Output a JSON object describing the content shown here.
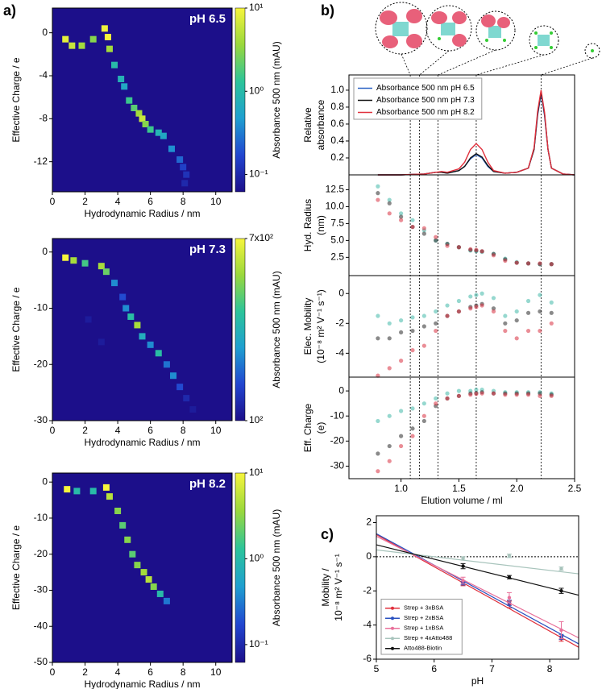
{
  "panel_labels": [
    "a)",
    "b)",
    "c)"
  ],
  "chart_data": [
    {
      "type": "heatmap",
      "xlabel": "Hydrodynamic Radius / nm",
      "ylabel": "Effective Charge / e",
      "annotation": "pH 6.5",
      "xlim": [
        0,
        11
      ],
      "xticks": [
        0,
        2,
        4,
        6,
        8,
        10
      ],
      "ylim": [
        -14.8,
        2.3
      ],
      "yticks": [
        0,
        -4,
        -8,
        -12
      ],
      "colormap": [
        "#1c0f8a",
        "#2246d0",
        "#1f9fd0",
        "#2cc49a",
        "#9ad83c",
        "#f6f53c"
      ],
      "colorbar": {
        "label": "Absorbance 500 nm (mAU)",
        "log": true,
        "lim": [
          0.062,
          10
        ],
        "ticks": [
          {
            "value": 10,
            "label": "10¹"
          },
          {
            "value": 1,
            "label": "10⁰"
          },
          {
            "value": 0.1,
            "label": "10⁻¹"
          }
        ]
      },
      "x": [
        0.8,
        1.2,
        1.8,
        2.5,
        3.2,
        3.4,
        3.5,
        3.8,
        4.2,
        4.4,
        4.7,
        5.0,
        5.3,
        5.5,
        5.7,
        6.0,
        6.5,
        6.8,
        7.3,
        7.8,
        8.0,
        8.2,
        8.1
      ],
      "y": [
        -0.6,
        -1.2,
        -1.2,
        -0.6,
        0.4,
        -0.4,
        -1.5,
        -3.0,
        -4.3,
        -5.0,
        -6.3,
        -7.0,
        -7.5,
        -8.0,
        -8.5,
        -9.0,
        -9.3,
        -9.6,
        -10.8,
        -11.8,
        -12.5,
        -13.2,
        -14.0
      ],
      "values": [
        8,
        6,
        4,
        3,
        9,
        10,
        4,
        1,
        0.8,
        0.6,
        1.5,
        2,
        4,
        6,
        3,
        1.5,
        0.8,
        0.6,
        0.4,
        0.25,
        0.15,
        0.12,
        0.1
      ]
    },
    {
      "type": "heatmap",
      "xlabel": "Hydrodynamic Radius / nm",
      "ylabel": "Effective Charge / e",
      "annotation": "pH 7.3",
      "xlim": [
        0,
        11
      ],
      "xticks": [
        0,
        2,
        4,
        6,
        8,
        10
      ],
      "ylim": [
        -30,
        2.4
      ],
      "yticks": [
        0,
        -10,
        -20,
        -30
      ],
      "colormap": [
        "#1c0f8a",
        "#2246d0",
        "#1f9fd0",
        "#2cc49a",
        "#9ad83c",
        "#f6f53c"
      ],
      "colorbar": {
        "label": "Absorbance 500 nm (mAU)",
        "log": true,
        "lim": [
          100,
          700
        ],
        "ticks": [
          {
            "value": 700,
            "label": "7x10²"
          },
          {
            "value": 100,
            "label": "10²"
          }
        ]
      },
      "x": [
        0.8,
        1.3,
        2.0,
        3.0,
        3.3,
        3.8,
        4.3,
        4.5,
        4.8,
        5.2,
        5.5,
        6.0,
        6.5,
        7.0,
        7.4,
        7.8,
        8.2,
        3.0,
        2.2,
        8.6
      ],
      "y": [
        -1,
        -1.5,
        -2,
        -2.5,
        -3.5,
        -5.5,
        -8,
        -10,
        -11.5,
        -13,
        -15,
        -16.5,
        -18,
        -20,
        -22,
        -24,
        -26,
        -16,
        -12,
        -28
      ],
      "values": [
        700,
        500,
        350,
        500,
        400,
        200,
        150,
        200,
        300,
        500,
        250,
        200,
        300,
        180,
        200,
        150,
        120,
        110,
        110,
        110
      ]
    },
    {
      "type": "heatmap",
      "xlabel": "Hydrodynamic Radius / nm",
      "ylabel": "Effective Charge / e",
      "annotation": "pH 8.2",
      "xlim": [
        0,
        11
      ],
      "xticks": [
        0,
        2,
        4,
        6,
        8,
        10
      ],
      "ylim": [
        -50,
        2.5
      ],
      "yticks": [
        0,
        -10,
        -20,
        -30,
        -40,
        -50
      ],
      "colormap": [
        "#1c0f8a",
        "#2246d0",
        "#1f9fd0",
        "#2cc49a",
        "#9ad83c",
        "#f6f53c"
      ],
      "colorbar": {
        "label": "Absorbance 500 nm (mAU)",
        "log": true,
        "lim": [
          0.062,
          10
        ],
        "ticks": [
          {
            "value": 10,
            "label": "10¹"
          },
          {
            "value": 1,
            "label": "10⁰"
          },
          {
            "value": 0.1,
            "label": "10⁻¹"
          }
        ]
      },
      "x": [
        0.9,
        1.5,
        2.5,
        3.3,
        3.5,
        4.0,
        4.3,
        4.6,
        4.9,
        5.2,
        5.6,
        5.9,
        6.2,
        6.6,
        7.0
      ],
      "y": [
        -2,
        -2.5,
        -2.5,
        -1.5,
        -4,
        -8,
        -12,
        -16,
        -20,
        -23,
        -25,
        -27,
        -29,
        -31,
        -33
      ],
      "values": [
        10,
        1,
        1,
        10,
        5,
        3,
        2,
        3,
        2,
        3,
        4,
        5,
        3,
        1,
        0.3
      ]
    },
    {
      "type": "line",
      "ylabel": [
        "Relative",
        "absorbance"
      ],
      "legend": "upper left",
      "xlim": [
        0.55,
        2.5
      ],
      "ylim": [
        0,
        1.18
      ],
      "yticks": [
        0.2,
        0.4,
        0.6,
        0.8,
        {
          "value": 1,
          "label": "1.0"
        }
      ],
      "vlines": [
        1.08,
        1.16,
        1.32,
        1.65,
        2.21
      ],
      "x": [
        0.8,
        1.0,
        1.2,
        1.3,
        1.35,
        1.4,
        1.5,
        1.55,
        1.6,
        1.65,
        1.7,
        1.75,
        1.8,
        1.9,
        2.0,
        2.1,
        2.15,
        2.18,
        2.21,
        2.24,
        2.27,
        2.3,
        2.4,
        2.5
      ],
      "series": [
        {
          "name": "Absorbance 500 nm pH 6.5",
          "color": "#2a62c4",
          "values": [
            0,
            0,
            0.01,
            0.03,
            0.03,
            0.02,
            0.05,
            0.1,
            0.19,
            0.24,
            0.2,
            0.1,
            0.04,
            0.02,
            0.03,
            0.08,
            0.3,
            0.7,
            0.96,
            0.7,
            0.3,
            0.08,
            0.01,
            0
          ]
        },
        {
          "name": "Absorbance 500 nm pH 7.3",
          "color": "#111111",
          "values": [
            0,
            0,
            0.01,
            0.03,
            0.03,
            0.02,
            0.05,
            0.1,
            0.2,
            0.25,
            0.21,
            0.11,
            0.04,
            0.02,
            0.03,
            0.08,
            0.3,
            0.72,
            0.98,
            0.72,
            0.3,
            0.08,
            0.01,
            0
          ]
        },
        {
          "name": "Absorbance 500 nm pH 8.2",
          "color": "#e0303c",
          "values": [
            0,
            0,
            0.01,
            0.03,
            0.04,
            0.03,
            0.07,
            0.15,
            0.3,
            0.37,
            0.3,
            0.15,
            0.05,
            0.02,
            0.03,
            0.08,
            0.32,
            0.75,
            1.0,
            0.74,
            0.3,
            0.08,
            0.01,
            0
          ]
        }
      ]
    },
    {
      "type": "scatter",
      "ylabel": [
        "Hyd. Radius",
        "(nm)"
      ],
      "xlim": [
        0.55,
        2.5
      ],
      "ylim": [
        -0.2,
        14.7
      ],
      "yticks": [
        2.5,
        {
          "value": 5,
          "label": "5.0"
        },
        7.5,
        {
          "value": 10,
          "label": "10.0"
        },
        12.5
      ],
      "x": [
        0.8,
        0.9,
        1.0,
        1.1,
        1.2,
        1.3,
        1.4,
        1.5,
        1.6,
        1.65,
        1.7,
        1.8,
        1.9,
        2.0,
        2.1,
        2.2,
        2.3
      ],
      "series": [
        {
          "color": "#40b8a8",
          "values": [
            13,
            11,
            9,
            8,
            6.5,
            5,
            4.5,
            4,
            3.5,
            3.4,
            3.3,
            3,
            2.3,
            1.8,
            1.6,
            1.5,
            1.5
          ]
        },
        {
          "color": "#2a2a2a",
          "values": [
            12,
            10.5,
            8.5,
            7,
            6,
            5,
            4.5,
            4,
            3.6,
            3.5,
            3.4,
            3.0,
            2.2,
            1.7,
            1.6,
            1.5,
            1.5
          ]
        },
        {
          "color": "#d83040",
          "values": [
            11,
            9,
            8,
            7,
            6.8,
            5.5,
            4.2,
            4,
            3.7,
            3.6,
            3.4,
            2.8,
            2.0,
            1.7,
            1.6,
            1.6,
            1.5
          ]
        }
      ]
    },
    {
      "type": "scatter",
      "ylabel": [
        "Elec. Mobility",
        "(10⁻⁸ m² V⁻¹ s⁻¹)"
      ],
      "xlim": [
        0.55,
        2.5
      ],
      "ylim": [
        -5.6,
        1.2
      ],
      "yticks": [
        0,
        -2,
        -4
      ],
      "x": [
        0.8,
        0.9,
        1.0,
        1.1,
        1.2,
        1.3,
        1.4,
        1.5,
        1.6,
        1.65,
        1.7,
        1.8,
        1.9,
        2.0,
        2.1,
        2.2,
        2.3
      ],
      "series": [
        {
          "color": "#40b8a8",
          "values": [
            -1.5,
            -2,
            -1.8,
            -1.6,
            -1.5,
            -1.2,
            -0.8,
            -0.5,
            -0.2,
            -0.1,
            0,
            -0.3,
            -1.5,
            -1.2,
            -0.5,
            -0.1,
            -0.6
          ]
        },
        {
          "color": "#2a2a2a",
          "values": [
            -3,
            -3,
            -2.6,
            -2.5,
            -2.2,
            -2,
            -1.5,
            -1.2,
            -0.9,
            -0.8,
            -0.7,
            -1,
            -2,
            -1.8,
            -1.3,
            -1.2,
            -1.3
          ]
        },
        {
          "color": "#d83040",
          "values": [
            -5.5,
            -5,
            -4.5,
            -3.8,
            -3.5,
            -2.5,
            -1.5,
            -1.2,
            -1,
            -0.9,
            -0.8,
            -1.2,
            -2.5,
            -3,
            -2.5,
            -2.5,
            -2
          ]
        }
      ]
    },
    {
      "type": "scatter",
      "ylabel": [
        "Eff. Charge",
        "(e)"
      ],
      "xlabel": "Elution volume / ml",
      "xlim": [
        0.55,
        2.5
      ],
      "xticks": [
        {
          "value": 1,
          "label": "1.0"
        },
        1.5,
        {
          "value": 2,
          "label": "2.0"
        },
        2.5
      ],
      "ylim": [
        -35,
        5.5
      ],
      "yticks": [
        0,
        -10,
        -20,
        -30
      ],
      "x": [
        0.8,
        0.9,
        1.0,
        1.1,
        1.2,
        1.3,
        1.4,
        1.5,
        1.6,
        1.65,
        1.7,
        1.8,
        1.9,
        2.0,
        2.1,
        2.2,
        2.3
      ],
      "series": [
        {
          "color": "#40b8a8",
          "values": [
            -12,
            -10,
            -8,
            -7,
            -5,
            -3,
            -1,
            0,
            0,
            0.5,
            0.5,
            0,
            -0.5,
            -0.5,
            -0.5,
            -0.5,
            -1
          ]
        },
        {
          "color": "#2a2a2a",
          "values": [
            -25,
            -22,
            -18,
            -15,
            -12,
            -6,
            -3,
            -2,
            -1,
            -0.8,
            -0.5,
            -1,
            -1,
            -1,
            -1,
            -1,
            -1.5
          ]
        },
        {
          "color": "#d83040",
          "values": [
            -32,
            -28,
            -22,
            -18,
            -10,
            -5,
            -3,
            -2,
            -1.5,
            -1.2,
            -1,
            -1,
            -1.5,
            -1.5,
            -1.5,
            -2,
            -2
          ]
        }
      ]
    },
    {
      "type": "errorbar",
      "xlabel": "pH",
      "ylabel": [
        "Mobility /",
        "10⁻⁸ m² V⁻¹ s⁻¹"
      ],
      "legend": "lower left",
      "xlim": [
        5,
        8.5
      ],
      "xticks": [
        5,
        6,
        7,
        8
      ],
      "ylim": [
        -6,
        2.4
      ],
      "yticks": [
        2,
        0,
        -2,
        -4,
        -6
      ],
      "hline": 0,
      "x": [
        6.5,
        7.3,
        8.2
      ],
      "fit_x": [
        5,
        8.5
      ],
      "series": [
        {
          "name": "Strep + 3xBSA",
          "color": "#e0303c",
          "values": [
            -1.6,
            -2.8,
            -4.8
          ],
          "errors": [
            0.1,
            0.2,
            0.15
          ],
          "fit": [
            1.3,
            -5.3
          ]
        },
        {
          "name": "Strep + 2xBSA",
          "color": "#2850c0",
          "values": [
            -1.55,
            -2.7,
            -4.7
          ],
          "errors": [
            0.1,
            0.15,
            0.15
          ],
          "fit": [
            1.35,
            -5.1
          ]
        },
        {
          "name": "Strep + 1xBSA",
          "color": "#e8709a",
          "values": [
            -1.4,
            -2.4,
            -4.3
          ],
          "errors": [
            0.2,
            0.3,
            0.5
          ],
          "fit": [
            1.2,
            -4.75
          ]
        },
        {
          "name": "Strep + 4xAtto488",
          "color": "#a8c4bc",
          "values": [
            -0.1,
            0.05,
            -0.7
          ],
          "errors": [
            0.1,
            0.1,
            0.1
          ],
          "fit": [
            0.4,
            -1.0
          ]
        },
        {
          "name": "Atto488-Biotin",
          "color": "#111111",
          "values": [
            -0.55,
            -1.2,
            -2.0
          ],
          "errors": [
            0.15,
            0.1,
            0.15
          ],
          "fit": [
            0.7,
            -2.25
          ]
        }
      ]
    }
  ]
}
